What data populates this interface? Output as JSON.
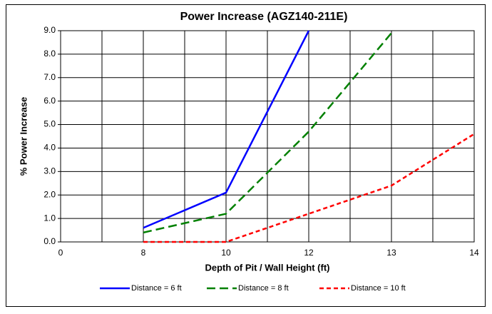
{
  "chart_data": {
    "type": "line",
    "title": "Power Increase (AGZ140-211E)",
    "x_label": "Depth of Pit / Wall Height (ft)",
    "y_label": "% Power Increase",
    "categories": [
      "0",
      "8",
      "10",
      "12",
      "13",
      "14"
    ],
    "series": [
      {
        "name": "Distance = 6 ft",
        "color": "#0000ff",
        "dash": "solid",
        "values": [
          null,
          0.6,
          2.1,
          9.0,
          null,
          null
        ]
      },
      {
        "name": "Distance = 8 ft",
        "color": "#008000",
        "dash": "dashed",
        "values": [
          null,
          0.4,
          1.2,
          4.7,
          8.9,
          null
        ]
      },
      {
        "name": "Distance = 10 ft",
        "color": "#ff0000",
        "dash": "dotted",
        "values": [
          null,
          0,
          0,
          1.2,
          2.4,
          4.6
        ]
      }
    ],
    "ylim": [
      0,
      9
    ],
    "yticks": [
      {
        "value": 0,
        "label": "0.0"
      },
      {
        "value": 1,
        "label": "1.0"
      },
      {
        "value": 2,
        "label": "2.0"
      },
      {
        "value": 3,
        "label": "3.0"
      },
      {
        "value": 4,
        "label": "4.0"
      },
      {
        "value": 5,
        "label": "5.0"
      },
      {
        "value": 6,
        "label": "6.0"
      },
      {
        "value": 7,
        "label": "7.0"
      },
      {
        "value": 8,
        "label": "8.0"
      },
      {
        "value": 9,
        "label": "9.0"
      }
    ],
    "grid": true,
    "legend": "bottom"
  }
}
